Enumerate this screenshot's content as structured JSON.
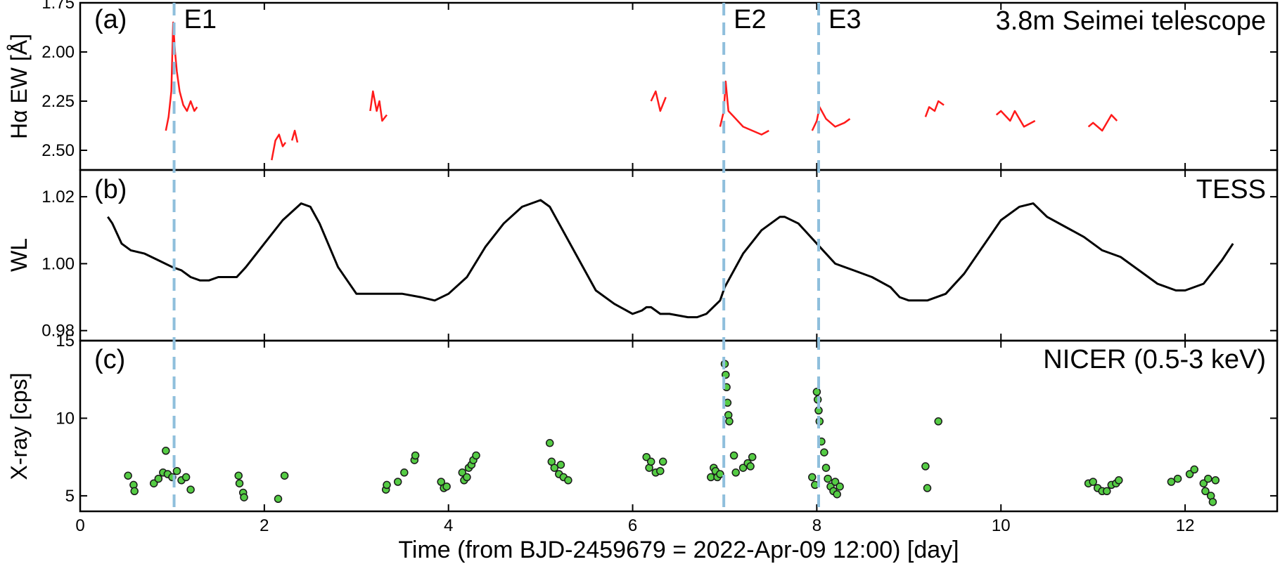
{
  "figure": {
    "xlabel": "Time (from BJD-2459679  = 2022-Apr-09 12:00) [day]"
  },
  "colors": {
    "halpha": "#ff1a1a",
    "wl": "#000000",
    "xray_fill": "#55cc44",
    "xray_edge": "#1a1a1a",
    "event_line": "#8fbfdc"
  },
  "chart_data": [
    {
      "type": "line",
      "panel_label": "(a)",
      "title": "3.8m Seimei telescope",
      "ylabel": "Hα EW [Å]",
      "xlim": [
        0,
        13
      ],
      "ylim": [
        2.6,
        1.75
      ],
      "y_inverted": true,
      "yticks": [
        "1.75",
        "2.00",
        "2.25",
        "2.50"
      ],
      "segments": [
        {
          "x": [
            0.93,
            0.96,
            0.99,
            1.01,
            1.03,
            1.05,
            1.08,
            1.12,
            1.16,
            1.2,
            1.24,
            1.27
          ],
          "y": [
            2.4,
            2.33,
            2.2,
            1.85,
            2.0,
            2.1,
            2.2,
            2.27,
            2.3,
            2.25,
            2.3,
            2.28
          ]
        },
        {
          "x": [
            2.08,
            2.12,
            2.16,
            2.2,
            2.23
          ],
          "y": [
            2.55,
            2.45,
            2.42,
            2.48,
            2.46
          ]
        },
        {
          "x": [
            2.3,
            2.33,
            2.36
          ],
          "y": [
            2.45,
            2.4,
            2.46
          ]
        },
        {
          "x": [
            3.15,
            3.18,
            3.22,
            3.25,
            3.28,
            3.33
          ],
          "y": [
            2.3,
            2.2,
            2.3,
            2.25,
            2.35,
            2.32
          ]
        },
        {
          "x": [
            6.2,
            6.25,
            6.3,
            6.36
          ],
          "y": [
            2.25,
            2.2,
            2.3,
            2.23
          ]
        },
        {
          "x": [
            6.95,
            6.99,
            7.01,
            7.04,
            7.1,
            7.2,
            7.3,
            7.4,
            7.48
          ],
          "y": [
            2.38,
            2.3,
            2.15,
            2.3,
            2.33,
            2.38,
            2.4,
            2.42,
            2.4
          ]
        },
        {
          "x": [
            7.95,
            8.0,
            8.03,
            8.1,
            8.2,
            8.3,
            8.36
          ],
          "y": [
            2.4,
            2.35,
            2.28,
            2.34,
            2.38,
            2.36,
            2.34
          ]
        },
        {
          "x": [
            9.18,
            9.22,
            9.28,
            9.32,
            9.38
          ],
          "y": [
            2.33,
            2.28,
            2.3,
            2.25,
            2.27
          ]
        },
        {
          "x": [
            9.95,
            10.0,
            10.1,
            10.15,
            10.25,
            10.37
          ],
          "y": [
            2.32,
            2.3,
            2.35,
            2.3,
            2.38,
            2.35
          ]
        },
        {
          "x": [
            10.95,
            11.0,
            11.1,
            11.2,
            11.26
          ],
          "y": [
            2.38,
            2.36,
            2.4,
            2.32,
            2.35
          ]
        }
      ]
    },
    {
      "type": "line",
      "panel_label": "(b)",
      "title": "TESS",
      "ylabel": "WL",
      "xlim": [
        0,
        13
      ],
      "ylim": [
        0.977,
        1.028
      ],
      "yticks": [
        "0.98",
        "1.00",
        "1.02"
      ],
      "x": [
        0.3,
        0.35,
        0.45,
        0.55,
        0.7,
        0.85,
        1.0,
        1.1,
        1.2,
        1.3,
        1.4,
        1.5,
        1.6,
        1.7,
        1.8,
        2.0,
        2.2,
        2.4,
        2.5,
        2.6,
        2.8,
        3.0,
        3.2,
        3.5,
        3.7,
        3.85,
        4.0,
        4.2,
        4.4,
        4.6,
        4.8,
        5.0,
        5.1,
        5.2,
        5.4,
        5.6,
        5.8,
        6.0,
        6.1,
        6.15,
        6.2,
        6.3,
        6.4,
        6.6,
        6.7,
        6.8,
        6.95,
        7.0,
        7.2,
        7.4,
        7.6,
        7.65,
        7.8,
        8.0,
        8.2,
        8.4,
        8.6,
        8.8,
        8.9,
        9.0,
        9.2,
        9.4,
        9.6,
        9.8,
        10.0,
        10.2,
        10.35,
        10.5,
        10.7,
        10.9,
        11.1,
        11.3,
        11.5,
        11.7,
        11.9,
        12.0,
        12.2,
        12.4,
        12.52
      ],
      "y": [
        1.014,
        1.012,
        1.006,
        1.004,
        1.003,
        1.001,
        0.999,
        0.998,
        0.996,
        0.995,
        0.995,
        0.996,
        0.996,
        0.996,
        0.999,
        1.006,
        1.013,
        1.018,
        1.017,
        1.012,
        0.999,
        0.991,
        0.991,
        0.991,
        0.99,
        0.989,
        0.991,
        0.996,
        1.005,
        1.012,
        1.017,
        1.019,
        1.017,
        1.012,
        1.002,
        0.992,
        0.988,
        0.985,
        0.986,
        0.987,
        0.987,
        0.985,
        0.985,
        0.984,
        0.984,
        0.985,
        0.989,
        0.993,
        1.003,
        1.01,
        1.014,
        1.014,
        1.012,
        1.006,
        1.0,
        0.998,
        0.996,
        0.993,
        0.99,
        0.989,
        0.989,
        0.991,
        0.997,
        1.005,
        1.013,
        1.017,
        1.018,
        1.014,
        1.011,
        1.008,
        1.004,
        1.002,
        0.998,
        0.994,
        0.992,
        0.992,
        0.994,
        1.001,
        1.006
      ]
    },
    {
      "type": "scatter",
      "panel_label": "(c)",
      "title": "NICER (0.5-3 keV)",
      "ylabel": "X-ray [cps]",
      "xlabel": "Time (from BJD-2459679  = 2022-Apr-09 12:00) [day]",
      "xlim": [
        0,
        13
      ],
      "ylim": [
        4,
        15
      ],
      "xticks": [
        "0",
        "2",
        "4",
        "6",
        "8",
        "10",
        "12"
      ],
      "yticks": [
        "5",
        "10",
        "15"
      ],
      "x": [
        0.52,
        0.58,
        0.59,
        0.8,
        0.85,
        0.9,
        0.93,
        0.95,
        1.0,
        1.05,
        1.1,
        1.15,
        1.2,
        1.72,
        1.73,
        1.77,
        1.78,
        2.15,
        2.22,
        3.32,
        3.33,
        3.45,
        3.52,
        3.63,
        3.64,
        3.92,
        3.95,
        3.98,
        4.15,
        4.17,
        4.2,
        4.22,
        4.25,
        4.27,
        4.3,
        5.1,
        5.12,
        5.15,
        5.2,
        5.22,
        5.25,
        5.3,
        6.15,
        6.18,
        6.2,
        6.25,
        6.3,
        6.33,
        6.85,
        6.88,
        6.9,
        6.92,
        6.95,
        7.0,
        7.01,
        7.02,
        7.03,
        7.04,
        7.05,
        7.1,
        7.12,
        7.2,
        7.25,
        7.28,
        7.3,
        7.95,
        7.98,
        8.0,
        8.01,
        8.02,
        8.03,
        8.05,
        8.08,
        8.1,
        8.12,
        8.15,
        8.18,
        8.2,
        8.22,
        8.25,
        9.18,
        9.2,
        9.32,
        10.95,
        11.0,
        11.05,
        11.1,
        11.15,
        11.2,
        11.25,
        11.28,
        11.85,
        11.92,
        12.05,
        12.1,
        12.2,
        12.22,
        12.25,
        12.28,
        12.3,
        12.33
      ],
      "y": [
        6.3,
        5.7,
        5.3,
        5.8,
        6.1,
        6.5,
        7.9,
        6.4,
        6.2,
        6.6,
        6.0,
        6.2,
        5.4,
        6.3,
        5.8,
        5.2,
        4.9,
        4.8,
        6.3,
        5.4,
        5.7,
        5.9,
        6.5,
        7.3,
        7.6,
        5.9,
        5.5,
        5.6,
        6.5,
        6.0,
        6.2,
        6.8,
        7.0,
        7.3,
        7.6,
        8.4,
        7.2,
        6.8,
        6.4,
        7.0,
        6.2,
        6.0,
        7.5,
        6.8,
        7.2,
        6.5,
        6.6,
        7.2,
        6.2,
        6.8,
        6.6,
        6.2,
        6.4,
        13.5,
        12.8,
        12.0,
        11.0,
        10.2,
        9.8,
        7.6,
        6.5,
        6.8,
        7.1,
        6.9,
        7.5,
        6.2,
        5.7,
        11.7,
        11.2,
        10.5,
        9.8,
        8.5,
        7.8,
        6.8,
        6.1,
        5.6,
        5.3,
        5.9,
        5.1,
        5.6,
        6.9,
        5.5,
        9.8,
        5.8,
        5.9,
        5.5,
        5.3,
        5.3,
        5.7,
        5.8,
        6.0,
        5.9,
        6.1,
        6.4,
        6.7,
        5.8,
        5.3,
        6.1,
        5.0,
        4.6,
        6.0
      ]
    }
  ],
  "events": [
    {
      "label": "E1",
      "x": 1.02
    },
    {
      "label": "E2",
      "x": 6.99
    },
    {
      "label": "E3",
      "x": 8.02
    }
  ]
}
